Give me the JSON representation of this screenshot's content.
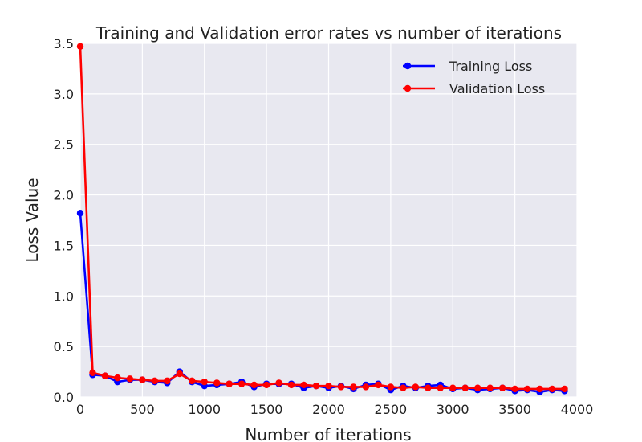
{
  "chart_data": {
    "type": "line",
    "title": "Training and Validation error rates vs number of iterations",
    "xlabel": "Number of iterations",
    "ylabel": "Loss Value",
    "xlim": [
      0,
      4000
    ],
    "ylim": [
      0,
      3.5
    ],
    "x_ticks": [
      0,
      500,
      1000,
      1500,
      2000,
      2500,
      3000,
      3500,
      4000
    ],
    "y_ticks": [
      0.0,
      0.5,
      1.0,
      1.5,
      2.0,
      2.5,
      3.0,
      3.5
    ],
    "x_tick_labels": [
      "0",
      "500",
      "1000",
      "1500",
      "2000",
      "2500",
      "3000",
      "3500",
      "4000"
    ],
    "y_tick_labels": [
      "0.0",
      "0.5",
      "1.0",
      "1.5",
      "2.0",
      "2.5",
      "3.0",
      "3.5"
    ],
    "grid": true,
    "legend_position": "top-right",
    "background_color": "#e8e8f0",
    "grid_color": "#ffffff",
    "x": [
      0,
      100,
      200,
      300,
      400,
      500,
      600,
      700,
      800,
      900,
      1000,
      1100,
      1200,
      1300,
      1400,
      1500,
      1600,
      1700,
      1800,
      1900,
      2000,
      2100,
      2200,
      2300,
      2400,
      2500,
      2600,
      2700,
      2800,
      2900,
      3000,
      3100,
      3200,
      3300,
      3400,
      3500,
      3600,
      3700,
      3800,
      3900
    ],
    "series": [
      {
        "name": "Training Loss",
        "color": "#0000ff",
        "values": [
          1.82,
          0.22,
          0.21,
          0.15,
          0.17,
          0.17,
          0.15,
          0.14,
          0.25,
          0.15,
          0.11,
          0.12,
          0.13,
          0.15,
          0.1,
          0.13,
          0.13,
          0.13,
          0.09,
          0.11,
          0.09,
          0.11,
          0.08,
          0.12,
          0.13,
          0.07,
          0.11,
          0.09,
          0.11,
          0.12,
          0.08,
          0.09,
          0.07,
          0.08,
          0.09,
          0.06,
          0.07,
          0.05,
          0.07,
          0.06
        ]
      },
      {
        "name": "Validation Loss",
        "color": "#ff0000",
        "values": [
          3.47,
          0.24,
          0.21,
          0.19,
          0.18,
          0.17,
          0.16,
          0.16,
          0.23,
          0.16,
          0.15,
          0.14,
          0.13,
          0.13,
          0.12,
          0.12,
          0.14,
          0.12,
          0.12,
          0.11,
          0.11,
          0.1,
          0.1,
          0.1,
          0.12,
          0.1,
          0.09,
          0.1,
          0.09,
          0.09,
          0.09,
          0.09,
          0.09,
          0.09,
          0.09,
          0.08,
          0.08,
          0.08,
          0.08,
          0.08
        ]
      }
    ]
  }
}
